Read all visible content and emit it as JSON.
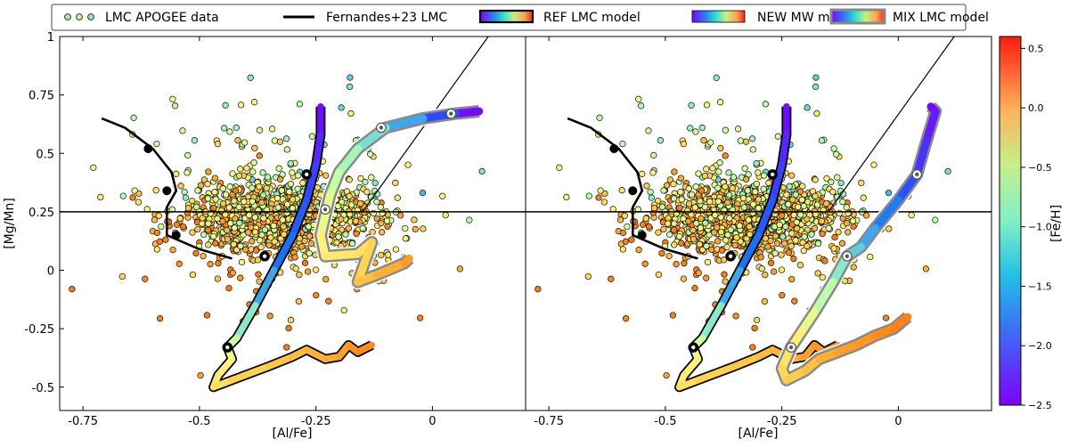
{
  "chart_data": [
    {
      "type": "scatter",
      "panel": "left",
      "xlabel": "[Al/Fe]",
      "ylabel": "[Mg/Mn]",
      "xlim": [
        -0.8,
        0.2
      ],
      "ylim": [
        -0.6,
        1.0
      ],
      "xticks": [
        -0.75,
        -0.5,
        -0.25,
        0
      ],
      "xtick_labels": [
        "-0.75",
        "-0.5",
        "-0.25",
        "0"
      ],
      "yticks": [
        -0.5,
        -0.25,
        0,
        0.25,
        0.5,
        0.75,
        1
      ],
      "ytick_labels": [
        "-0.5",
        "-0.25",
        "0",
        "0.25",
        "0.5",
        "0.75",
        "1"
      ],
      "reference_lines": {
        "horizontal_y": 0.25,
        "diagonal": [
          [
            -0.15,
            0.25
          ],
          [
            0.12,
            1.0
          ]
        ]
      },
      "series": [
        {
          "name": "Fernandes+23 LMC",
          "style": "black-line",
          "x": [
            -0.71,
            -0.66,
            -0.6,
            -0.56,
            -0.55,
            -0.57,
            -0.57,
            -0.5,
            -0.43
          ],
          "y": [
            0.65,
            0.61,
            0.52,
            0.42,
            0.34,
            0.27,
            0.15,
            0.09,
            0.05
          ],
          "markers_x": [
            -0.61,
            -0.57,
            -0.55
          ],
          "markers_y": [
            0.52,
            0.34,
            0.15
          ]
        },
        {
          "name": "REF LMC model",
          "style": "thick-colored-black-edge",
          "x": [
            -0.24,
            -0.24,
            -0.25,
            -0.27,
            -0.3,
            -0.34,
            -0.38,
            -0.42,
            -0.44,
            -0.43,
            -0.46,
            -0.47,
            -0.43,
            -0.35,
            -0.3,
            -0.27,
            -0.23,
            -0.2,
            -0.18,
            -0.16,
            -0.13
          ],
          "y": [
            0.7,
            0.58,
            0.45,
            0.3,
            0.15,
            0.0,
            -0.15,
            -0.29,
            -0.33,
            -0.38,
            -0.45,
            -0.5,
            -0.47,
            -0.41,
            -0.37,
            -0.34,
            -0.38,
            -0.37,
            -0.32,
            -0.35,
            -0.32
          ],
          "fe_h": [
            -2.5,
            -2.4,
            -2.3,
            -2.2,
            -2.1,
            -2.0,
            -1.6,
            -1.1,
            -0.8,
            -0.7,
            -0.6,
            -0.5,
            -0.4,
            -0.3,
            -0.25,
            -0.2,
            -0.15,
            -0.1,
            -0.05,
            0.0,
            0.05
          ],
          "markers_x": [
            -0.27,
            -0.36,
            -0.44
          ],
          "markers_y": [
            0.41,
            0.06,
            -0.33
          ]
        },
        {
          "name": "NEW MW model",
          "style": "thick-colored-thin-black-edge",
          "x": [],
          "y": []
        },
        {
          "name": "MIX LMC model",
          "style": "thick-colored-gray-edge",
          "x": [
            0.1,
            0.05,
            -0.02,
            -0.1,
            -0.16,
            -0.2,
            -0.22,
            -0.24,
            -0.23,
            -0.16,
            -0.13,
            -0.16,
            -0.12,
            -0.06,
            -0.05
          ],
          "y": [
            0.68,
            0.67,
            0.65,
            0.61,
            0.52,
            0.42,
            0.32,
            0.15,
            0.06,
            0.07,
            0.12,
            -0.05,
            -0.02,
            0.03,
            0.05
          ],
          "fe_h": [
            -2.5,
            -2.4,
            -2.0,
            -1.6,
            -1.3,
            -1.1,
            -0.9,
            -0.7,
            -0.6,
            -0.5,
            -0.45,
            -0.3,
            -0.2,
            -0.1,
            0.0
          ],
          "markers_x": [
            0.04,
            -0.11,
            -0.23
          ],
          "markers_y": [
            0.67,
            0.61,
            0.26
          ]
        }
      ]
    },
    {
      "type": "scatter",
      "panel": "right",
      "xlabel": "[Al/Fe]",
      "ylabel": "",
      "xlim": [
        -0.8,
        0.2
      ],
      "ylim": [
        -0.6,
        1.0
      ],
      "xticks": [
        -0.75,
        -0.5,
        -0.25,
        0
      ],
      "xtick_labels": [
        "-0.75",
        "-0.5",
        "-0.25",
        "0"
      ],
      "reference_lines": {
        "horizontal_y": 0.25,
        "diagonal": [
          [
            -0.15,
            0.25
          ],
          [
            0.12,
            1.0
          ]
        ]
      },
      "series": [
        {
          "name": "Fernandes+23 LMC",
          "style": "black-line",
          "x": [
            -0.71,
            -0.66,
            -0.6,
            -0.56,
            -0.55,
            -0.57,
            -0.57,
            -0.5,
            -0.43
          ],
          "y": [
            0.65,
            0.61,
            0.52,
            0.42,
            0.34,
            0.27,
            0.15,
            0.09,
            0.05
          ],
          "markers_x": [
            -0.61,
            -0.57,
            -0.55
          ],
          "markers_y": [
            0.52,
            0.34,
            0.15
          ]
        },
        {
          "name": "REF LMC model",
          "style": "thick-colored-black-edge",
          "x": [
            -0.24,
            -0.24,
            -0.25,
            -0.27,
            -0.3,
            -0.34,
            -0.38,
            -0.42,
            -0.44,
            -0.43,
            -0.46,
            -0.47,
            -0.43,
            -0.35,
            -0.3,
            -0.27,
            -0.23,
            -0.2,
            -0.18,
            -0.16,
            -0.13
          ],
          "y": [
            0.7,
            0.58,
            0.45,
            0.3,
            0.15,
            0.0,
            -0.15,
            -0.29,
            -0.33,
            -0.38,
            -0.45,
            -0.5,
            -0.47,
            -0.41,
            -0.37,
            -0.34,
            -0.38,
            -0.37,
            -0.32,
            -0.35,
            -0.32
          ],
          "fe_h": [
            -2.5,
            -2.4,
            -2.3,
            -2.2,
            -2.1,
            -2.0,
            -1.6,
            -1.1,
            -0.8,
            -0.7,
            -0.6,
            -0.5,
            -0.4,
            -0.3,
            -0.25,
            -0.2,
            -0.15,
            -0.1,
            -0.05,
            0.0,
            0.05
          ],
          "markers_x": [
            -0.27,
            -0.36,
            -0.44
          ],
          "markers_y": [
            0.41,
            0.06,
            -0.33
          ]
        },
        {
          "name": "MIX LMC model",
          "style": "thick-colored-gray-edge",
          "x": [
            0.07,
            0.08,
            0.06,
            0.04,
            0.0,
            -0.05,
            -0.08,
            -0.11,
            -0.14,
            -0.18,
            -0.21,
            -0.23,
            -0.25,
            -0.24,
            -0.2,
            -0.17,
            -0.13,
            -0.09,
            -0.05,
            -0.01,
            0.02
          ],
          "y": [
            0.7,
            0.68,
            0.55,
            0.41,
            0.3,
            0.18,
            0.1,
            0.06,
            -0.05,
            -0.18,
            -0.27,
            -0.33,
            -0.42,
            -0.47,
            -0.43,
            -0.38,
            -0.35,
            -0.32,
            -0.28,
            -0.25,
            -0.2
          ],
          "fe_h": [
            -2.5,
            -2.45,
            -2.35,
            -2.25,
            -2.1,
            -1.9,
            -1.7,
            -1.5,
            -1.2,
            -0.9,
            -0.7,
            -0.55,
            -0.45,
            -0.35,
            -0.3,
            -0.2,
            -0.1,
            -0.05,
            0.0,
            0.05,
            0.1
          ],
          "markers_x": [
            0.04,
            -0.11,
            -0.23
          ],
          "markers_y": [
            0.41,
            0.06,
            -0.33
          ]
        }
      ]
    }
  ],
  "legend": {
    "location": "top",
    "entries": [
      {
        "label": "LMC APOGEE data"
      },
      {
        "label": "Fernandes+23 LMC"
      },
      {
        "label": "REF LMC model"
      },
      {
        "label": "NEW MW model"
      },
      {
        "label": "MIX LMC model"
      }
    ]
  },
  "colorbar": {
    "label": "[Fe/H]",
    "range": [
      -2.5,
      0.6
    ],
    "tick_values": [
      0.5,
      0.0,
      -0.5,
      -1.0,
      -1.5,
      -2.0,
      -2.5
    ],
    "tick_labels": [
      "0.5",
      "0.0",
      "−0.5",
      "−1.0",
      "−1.5",
      "−2.0",
      "−2.5"
    ],
    "colormap": "rainbow"
  },
  "scatter_cloud": {
    "description_center": {
      "al_fe": -0.33,
      "mg_mn": 0.23
    },
    "count_per_panel": 1400,
    "fe_h_range": [
      -2.2,
      0.1
    ]
  }
}
